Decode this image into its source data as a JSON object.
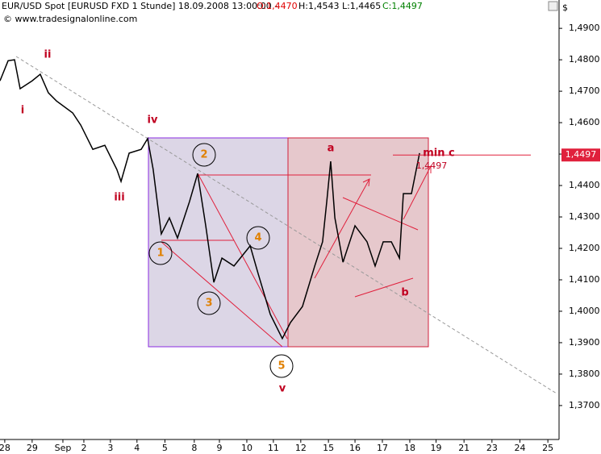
{
  "chart_data": {
    "type": "line",
    "title": "EUR/USD Spot [EURUSD FXD  1 Stunde] 18.09.2008 13:00:00 -",
    "open_label": "O:1,4470",
    "high_low_label": "H:1,4543 L:1,4465",
    "close_label": "C:1,4497",
    "subtitle": "© www.tradesignalonline.com",
    "y_axis_label": "$",
    "last_price": {
      "value": 1.4497,
      "label": "1,4497"
    },
    "series": [
      {
        "name": "EUR/USD",
        "color": "#000000",
        "x": [
          0,
          2.9,
          5.2,
          7.2,
          11.5,
          14.4,
          17.3,
          20.2,
          26,
          28.9,
          33.2,
          37.5,
          41.8,
          43.3,
          46.2,
          50.5,
          52.8,
          54.8,
          57.7,
          60.6,
          63.5,
          67.8,
          70.7,
          73.6,
          76.5,
          79.4,
          83.7,
          89.5,
          92.4,
          96.7,
          101,
          103.9,
          108.2,
          112.6,
          115.4,
          116.9,
          118.3,
          119.8,
          122.7,
          127,
          131.3,
          134.2,
          137.1,
          140,
          142.9,
          144.3,
          147.2,
          150.1
        ],
        "values": [
          1.4733,
          1.4797,
          1.48,
          1.4708,
          1.4733,
          1.4754,
          1.4695,
          1.4669,
          1.4631,
          1.4592,
          1.4515,
          1.4528,
          1.4451,
          1.4413,
          1.4503,
          1.4515,
          1.4549,
          1.4451,
          1.4246,
          1.4297,
          1.4233,
          1.4349,
          1.4438,
          1.4272,
          1.4092,
          1.4169,
          1.4144,
          1.4208,
          1.4118,
          1.399,
          1.3913,
          1.3964,
          1.4015,
          1.4144,
          1.4221,
          1.4349,
          1.4477,
          1.4297,
          1.4156,
          1.4272,
          1.4221,
          1.4144,
          1.4221,
          1.4221,
          1.4169,
          1.4374,
          1.4374,
          1.4503
        ]
      }
    ],
    "annotations": [
      "i",
      "ii",
      "iii",
      "iv",
      "v",
      "1",
      "2",
      "3",
      "4",
      "5",
      "a",
      "b",
      "min c",
      "1,4497"
    ],
    "xlim": [
      0,
      200
    ],
    "xticks": [
      {
        "value": 1.7,
        "label": "28"
      },
      {
        "value": 11.5,
        "label": "29"
      },
      {
        "value": 22.5,
        "label": "Sep"
      },
      {
        "value": 30,
        "label": "2"
      },
      {
        "value": 39.5,
        "label": "3"
      },
      {
        "value": 49,
        "label": "4"
      },
      {
        "value": 59,
        "label": "5"
      },
      {
        "value": 69.5,
        "label": "8"
      },
      {
        "value": 78.5,
        "label": "9"
      },
      {
        "value": 88.3,
        "label": "10"
      },
      {
        "value": 97.8,
        "label": "11"
      },
      {
        "value": 107.6,
        "label": "12"
      },
      {
        "value": 117.5,
        "label": "15"
      },
      {
        "value": 127,
        "label": "16"
      },
      {
        "value": 136.8,
        "label": "17"
      },
      {
        "value": 146.6,
        "label": "18"
      },
      {
        "value": 156,
        "label": "19"
      },
      {
        "value": 166,
        "label": "21"
      },
      {
        "value": 176,
        "label": "23"
      },
      {
        "value": 186,
        "label": "24"
      },
      {
        "value": 196,
        "label": "25"
      }
    ],
    "ylim": [
      1.3592,
      1.4944
    ],
    "yticks": [
      {
        "value": 1.49,
        "label": "1,4900"
      },
      {
        "value": 1.48,
        "label": "1,4800"
      },
      {
        "value": 1.47,
        "label": "1,4700"
      },
      {
        "value": 1.46,
        "label": "1,4600"
      },
      {
        "value": 1.45,
        "label": "1,4500"
      },
      {
        "value": 1.44,
        "label": "1,4400"
      },
      {
        "value": 1.43,
        "label": "1,4300"
      },
      {
        "value": 1.42,
        "label": "1,4200"
      },
      {
        "value": 1.41,
        "label": "1,4100"
      },
      {
        "value": 1.4,
        "label": "1,4000"
      },
      {
        "value": 1.39,
        "label": "1,3900"
      },
      {
        "value": 1.38,
        "label": "1,3800"
      },
      {
        "value": 1.37,
        "label": "1,3700"
      }
    ]
  }
}
